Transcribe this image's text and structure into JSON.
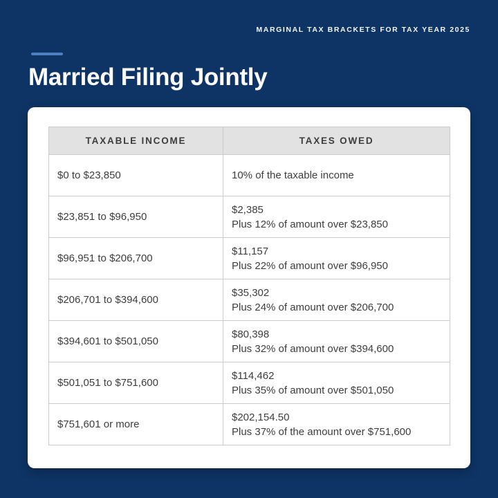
{
  "page": {
    "eyebrow": "MARGINAL TAX BRACKETS FOR TAX YEAR 2025",
    "title": "Married Filing Jointly"
  },
  "colors": {
    "background": "#0e3465",
    "accent_dash": "#4d80c0",
    "card_background": "#ffffff",
    "table_header_background": "#e2e2e2",
    "table_border": "#cbcbcb",
    "text_dark": "#3d3d3d",
    "text_light": "#ffffff"
  },
  "table": {
    "headers": [
      "TAXABLE INCOME",
      "TAXES OWED"
    ],
    "rows": [
      {
        "income": "$0 to $23,850",
        "owed_line1": "10% of the taxable income",
        "owed_line2": null
      },
      {
        "income": "$23,851 to $96,950",
        "owed_line1": "$2,385",
        "owed_line2": "Plus 12% of amount over $23,850"
      },
      {
        "income": "$96,951 to $206,700",
        "owed_line1": "$11,157",
        "owed_line2": "Plus 22% of amount over $96,950"
      },
      {
        "income": "$206,701 to $394,600",
        "owed_line1": "$35,302",
        "owed_line2": "Plus 24% of amount over $206,700"
      },
      {
        "income": "$394,601 to $501,050",
        "owed_line1": "$80,398",
        "owed_line2": "Plus 32% of amount over $394,600"
      },
      {
        "income": "$501,051 to $751,600",
        "owed_line1": "$114,462",
        "owed_line2": "Plus 35% of amount over $501,050"
      },
      {
        "income": "$751,601 or more",
        "owed_line1": "$202,154.50",
        "owed_line2": "Plus 37% of the amount over $751,600"
      }
    ]
  }
}
